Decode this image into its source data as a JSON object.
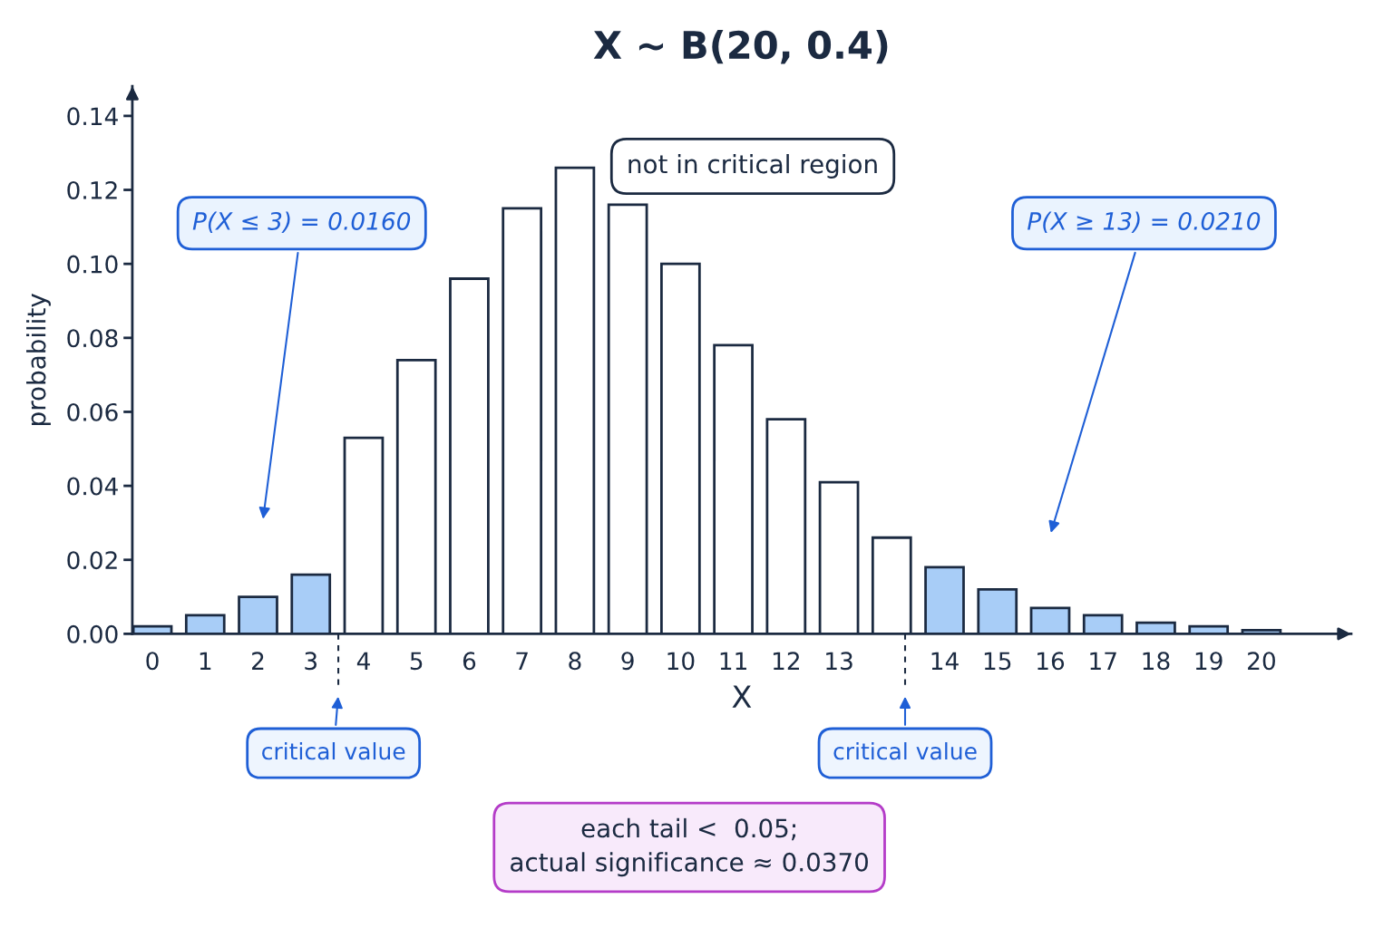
{
  "chart_data": {
    "type": "bar",
    "title": "X ~ B(20, 0.4)",
    "xlabel": "X",
    "ylabel": "probability",
    "categories": [
      "0",
      "1",
      "2",
      "3",
      "4",
      "5",
      "6",
      "7",
      "8",
      "9",
      "10",
      "11",
      "12",
      "13",
      null,
      "14",
      "15",
      "16",
      "17",
      "18",
      "19",
      "20"
    ],
    "values": [
      0.002,
      0.005,
      0.01,
      0.016,
      0.053,
      0.074,
      0.096,
      0.115,
      0.126,
      0.116,
      0.1,
      0.078,
      0.058,
      0.041,
      0.026,
      0.018,
      0.012,
      0.007,
      0.005,
      0.003,
      0.002,
      0.001
    ],
    "colors": [
      "#a8cdf7",
      "#a8cdf7",
      "#a8cdf7",
      "#a8cdf7",
      "#ffffff",
      "#ffffff",
      "#ffffff",
      "#ffffff",
      "#ffffff",
      "#ffffff",
      "#ffffff",
      "#ffffff",
      "#ffffff",
      "#ffffff",
      "#ffffff",
      "#a8cdf7",
      "#a8cdf7",
      "#a8cdf7",
      "#a8cdf7",
      "#a8cdf7",
      "#a8cdf7",
      "#a8cdf7"
    ],
    "ylim": [
      0,
      0.148
    ],
    "yticks": [
      {
        "value": 0,
        "label": "0.00"
      },
      {
        "value": 0.02,
        "label": "0.02"
      },
      {
        "value": 0.04,
        "label": "0.04"
      },
      {
        "value": 0.06,
        "label": "0.06"
      },
      {
        "value": 0.08,
        "label": "0.08"
      },
      {
        "value": 0.1,
        "label": "0.10"
      },
      {
        "value": 0.12,
        "label": "0.12"
      },
      {
        "value": 0.14,
        "label": "0.14"
      }
    ],
    "annotations": [
      "P(X ≤ 3) = 0.0160",
      "not in critical region",
      "P(X ≥ 13) = 0.0210",
      "critical value",
      "critical value",
      "each tail <  0.05;\nactual significance ≈ 0.0370"
    ],
    "grid": false,
    "legend": false
  }
}
